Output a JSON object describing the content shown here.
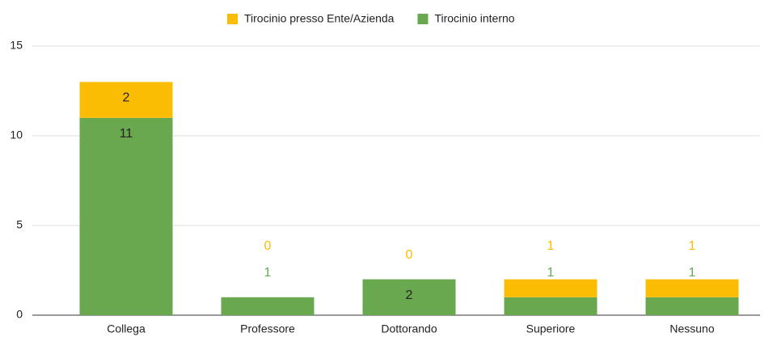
{
  "chart_data": {
    "type": "stacked_bar",
    "categories": [
      "Collega",
      "Professore",
      "Dottorando",
      "Superiore",
      "Nessuno"
    ],
    "series": [
      {
        "name": "Tirocinio interno",
        "color": "#6aa84f",
        "values": [
          11,
          1,
          2,
          1,
          1
        ]
      },
      {
        "name": "Tirocinio presso Ente/Azienda",
        "color": "#fbbc04",
        "values": [
          2,
          0,
          0,
          1,
          1
        ]
      }
    ],
    "legend_order": [
      1,
      0
    ],
    "ylim": [
      0,
      15
    ],
    "yticks": [
      0,
      5,
      10,
      15
    ],
    "grid": true
  }
}
